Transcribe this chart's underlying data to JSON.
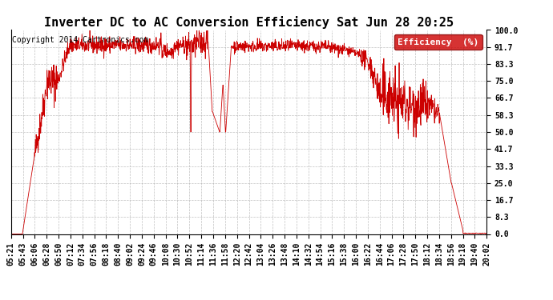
{
  "title": "Inverter DC to AC Conversion Efficiency Sat Jun 28 20:25",
  "copyright": "Copyright 2014 Cartronics.com",
  "legend_label": "Efficiency  (%)",
  "legend_bg": "#cc0000",
  "line_color": "#cc0000",
  "bg_color": "#ffffff",
  "plot_bg": "#ffffff",
  "grid_color": "#b0b0b0",
  "ylim": [
    0.0,
    100.0
  ],
  "yticks": [
    0.0,
    8.3,
    16.7,
    25.0,
    33.3,
    41.7,
    50.0,
    58.3,
    66.7,
    75.0,
    83.3,
    91.7,
    100.0
  ],
  "ytick_labels": [
    "0.0",
    "8.3",
    "16.7",
    "25.0",
    "33.3",
    "41.7",
    "50.0",
    "58.3",
    "66.7",
    "75.0",
    "83.3",
    "91.7",
    "100.0"
  ],
  "xtick_labels": [
    "05:21",
    "05:43",
    "06:06",
    "06:28",
    "06:50",
    "07:12",
    "07:34",
    "07:56",
    "08:18",
    "08:40",
    "09:02",
    "09:24",
    "09:46",
    "10:08",
    "10:30",
    "10:52",
    "11:14",
    "11:36",
    "11:58",
    "12:20",
    "12:42",
    "13:04",
    "13:26",
    "13:48",
    "14:10",
    "14:32",
    "14:54",
    "15:16",
    "15:38",
    "16:00",
    "16:22",
    "16:44",
    "17:06",
    "17:28",
    "17:50",
    "18:12",
    "18:34",
    "18:56",
    "19:18",
    "19:40",
    "20:02"
  ],
  "title_fontsize": 11,
  "copyright_fontsize": 7,
  "tick_fontsize": 7,
  "legend_fontsize": 8
}
